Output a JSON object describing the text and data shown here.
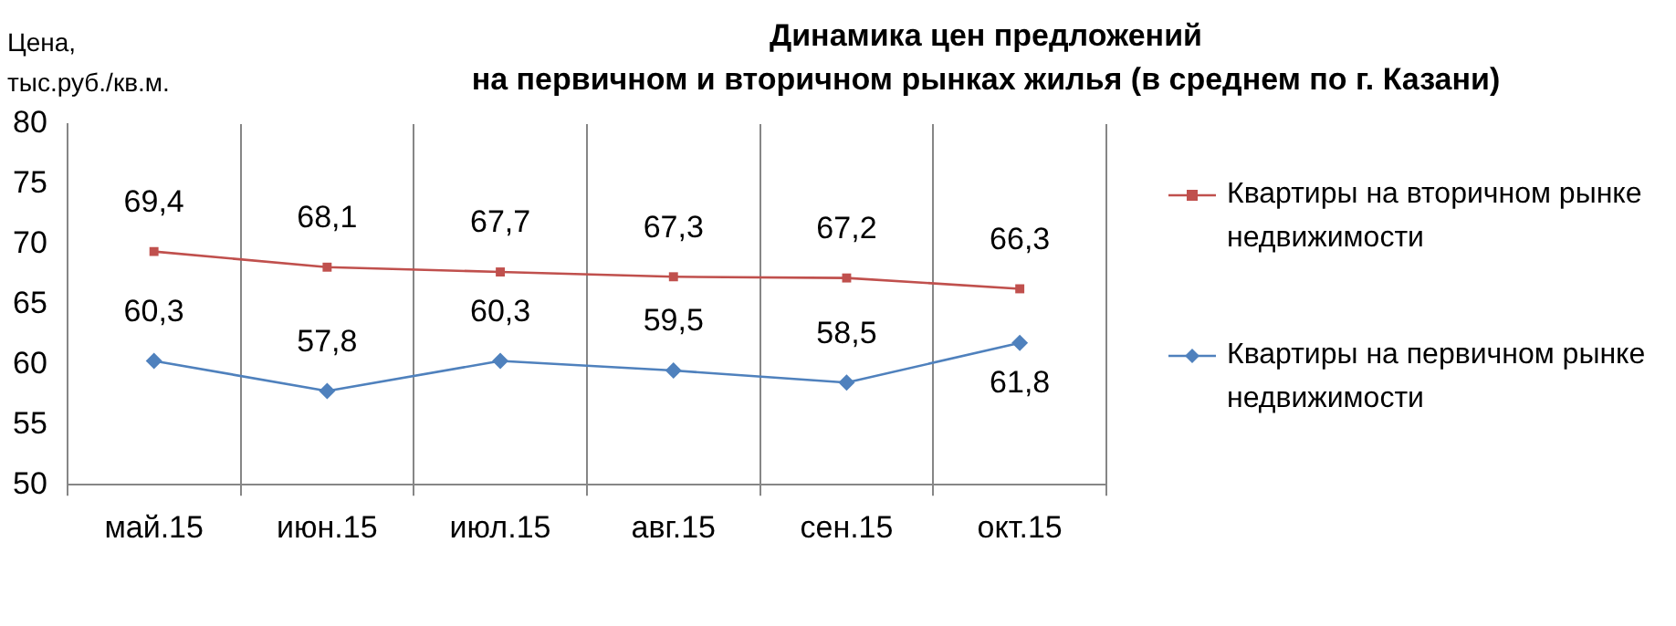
{
  "chart_data": {
    "type": "line",
    "title": "Динамика цен предложений\nна первичном и вторичном рынках жилья (в среднем по г. Казани)",
    "ylabel": "Цена,\nтыс.руб./кв.м.",
    "categories": [
      "май.15",
      "июн.15",
      "июл.15",
      "авг.15",
      "сен.15",
      "окт.15"
    ],
    "series": [
      {
        "name": "Квартиры на вторичном рынке недвижимости",
        "color": "#c0504d",
        "marker": "square",
        "values": [
          69.4,
          68.1,
          67.7,
          67.3,
          67.2,
          66.3
        ],
        "value_labels": [
          "69,4",
          "68,1",
          "67,7",
          "67,3",
          "67,2",
          "66,3"
        ]
      },
      {
        "name": "Квартиры на первичном рынке недвижимости",
        "color": "#4f81bd",
        "marker": "diamond",
        "values": [
          60.3,
          57.8,
          60.3,
          59.5,
          58.5,
          61.8
        ],
        "value_labels": [
          "60,3",
          "57,8",
          "60,3",
          "59,5",
          "58,5",
          "61,8"
        ]
      }
    ],
    "ylim": [
      50,
      80
    ],
    "yticks": [
      50,
      55,
      60,
      65,
      70,
      75,
      80
    ],
    "grid": "x",
    "legend": "right"
  }
}
